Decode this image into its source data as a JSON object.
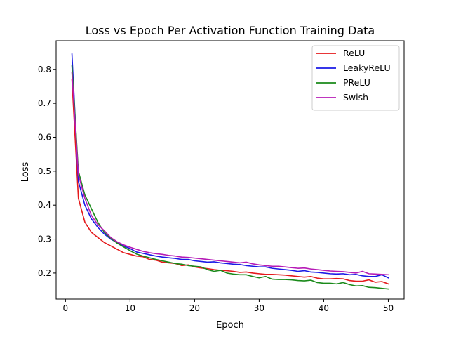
{
  "chart_data": {
    "type": "line",
    "title": "Loss vs Epoch Per Activation Function Training Data",
    "xlabel": "Epoch",
    "ylabel": "Loss",
    "xlim": [
      -1.45,
      52.45
    ],
    "ylim": [
      0.1233,
      0.8843
    ],
    "xticks": [
      0,
      10,
      20,
      30,
      40,
      50
    ],
    "yticks": [
      0.2,
      0.3,
      0.4,
      0.5,
      0.6,
      0.7,
      0.8
    ],
    "ytick_labels": [
      "0.2",
      "0.3",
      "0.4",
      "0.5",
      "0.6",
      "0.7",
      "0.8"
    ],
    "grid": false,
    "legend_position": "top-right",
    "x": [
      1,
      2,
      3,
      4,
      5,
      6,
      7,
      8,
      9,
      10,
      11,
      12,
      13,
      14,
      15,
      16,
      17,
      18,
      19,
      20,
      21,
      22,
      23,
      24,
      25,
      26,
      27,
      28,
      29,
      30,
      31,
      32,
      33,
      34,
      35,
      36,
      37,
      38,
      39,
      40,
      41,
      42,
      43,
      44,
      45,
      46,
      47,
      48,
      49,
      50
    ],
    "series": [
      {
        "name": "ReLU",
        "color": "#e41a1c",
        "values": [
          0.77,
          0.42,
          0.35,
          0.32,
          0.305,
          0.29,
          0.28,
          0.27,
          0.26,
          0.255,
          0.25,
          0.248,
          0.24,
          0.238,
          0.232,
          0.23,
          0.228,
          0.222,
          0.224,
          0.218,
          0.215,
          0.213,
          0.21,
          0.208,
          0.207,
          0.205,
          0.202,
          0.203,
          0.2,
          0.198,
          0.196,
          0.196,
          0.195,
          0.194,
          0.192,
          0.19,
          0.188,
          0.19,
          0.185,
          0.183,
          0.183,
          0.184,
          0.183,
          0.178,
          0.176,
          0.176,
          0.18,
          0.173,
          0.175,
          0.168
        ]
      },
      {
        "name": "LeakyReLU",
        "color": "#1a1ae6",
        "values": [
          0.845,
          0.47,
          0.4,
          0.36,
          0.335,
          0.315,
          0.3,
          0.29,
          0.28,
          0.272,
          0.262,
          0.258,
          0.254,
          0.25,
          0.247,
          0.245,
          0.243,
          0.24,
          0.24,
          0.236,
          0.234,
          0.232,
          0.233,
          0.23,
          0.228,
          0.226,
          0.225,
          0.222,
          0.22,
          0.218,
          0.218,
          0.214,
          0.212,
          0.21,
          0.208,
          0.205,
          0.207,
          0.203,
          0.202,
          0.2,
          0.198,
          0.197,
          0.198,
          0.195,
          0.196,
          0.192,
          0.19,
          0.19,
          0.195,
          0.186
        ]
      },
      {
        "name": "PReLU",
        "color": "#1a8a1a",
        "values": [
          0.81,
          0.5,
          0.43,
          0.39,
          0.35,
          0.32,
          0.303,
          0.288,
          0.277,
          0.266,
          0.256,
          0.25,
          0.245,
          0.24,
          0.236,
          0.232,
          0.228,
          0.226,
          0.222,
          0.22,
          0.218,
          0.21,
          0.205,
          0.208,
          0.2,
          0.197,
          0.195,
          0.195,
          0.19,
          0.186,
          0.19,
          0.182,
          0.181,
          0.181,
          0.18,
          0.178,
          0.177,
          0.179,
          0.172,
          0.17,
          0.17,
          0.168,
          0.172,
          0.166,
          0.162,
          0.163,
          0.158,
          0.157,
          0.155,
          0.153
        ]
      },
      {
        "name": "Swish",
        "color": "#b61ab6",
        "values": [
          0.79,
          0.49,
          0.42,
          0.37,
          0.343,
          0.325,
          0.305,
          0.292,
          0.283,
          0.276,
          0.27,
          0.264,
          0.26,
          0.257,
          0.255,
          0.252,
          0.25,
          0.247,
          0.246,
          0.244,
          0.242,
          0.24,
          0.238,
          0.236,
          0.234,
          0.232,
          0.23,
          0.232,
          0.227,
          0.224,
          0.222,
          0.22,
          0.22,
          0.218,
          0.216,
          0.214,
          0.215,
          0.212,
          0.21,
          0.208,
          0.206,
          0.205,
          0.204,
          0.202,
          0.2,
          0.205,
          0.198,
          0.197,
          0.196,
          0.195
        ]
      }
    ]
  }
}
